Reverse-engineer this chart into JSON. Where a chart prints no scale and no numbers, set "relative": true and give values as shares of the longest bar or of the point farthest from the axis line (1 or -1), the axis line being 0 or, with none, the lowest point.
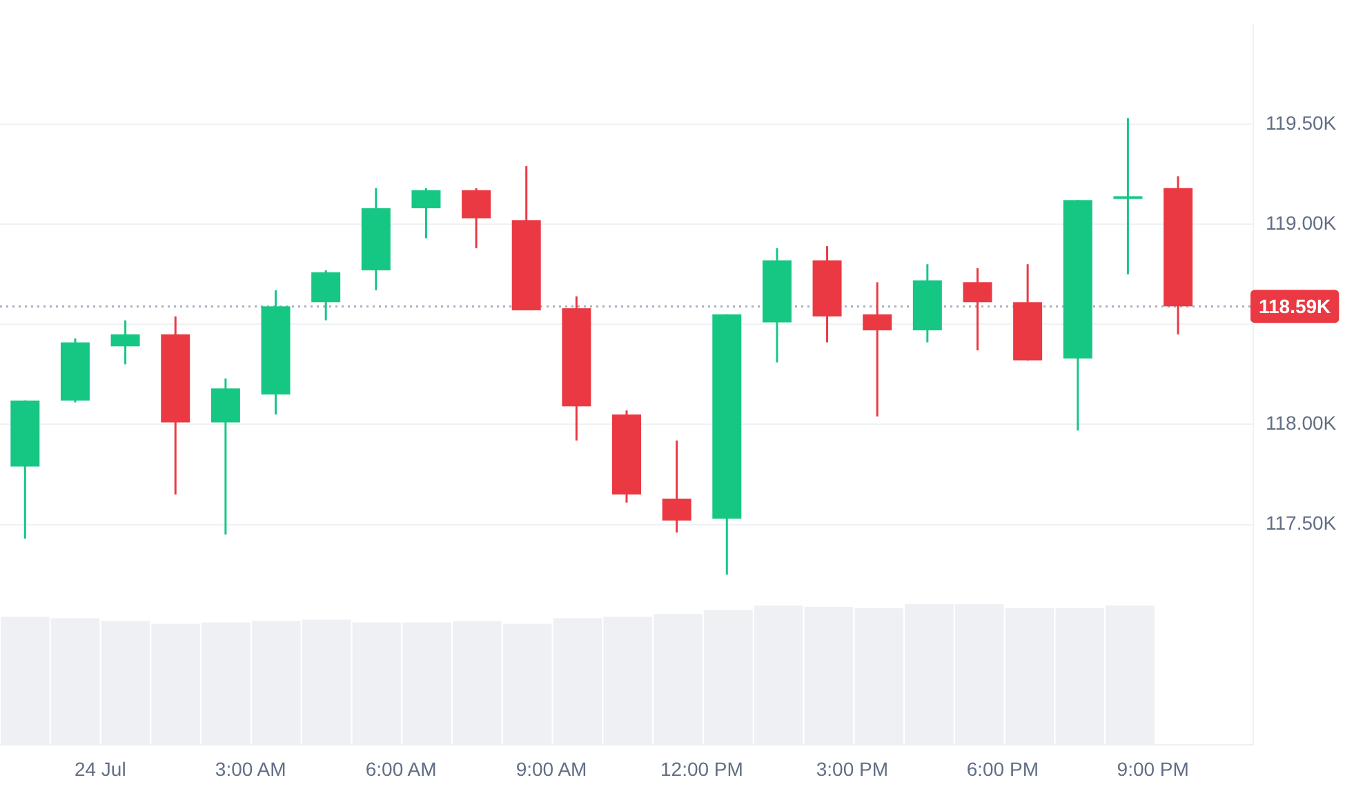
{
  "chart_data": [
    {
      "type": "candlestick",
      "x": [
        -1.5,
        -0.5,
        0.5,
        1.5,
        2.5,
        3.5,
        4.5,
        5.5,
        6.5,
        7.5,
        8.5,
        9.5,
        10.5,
        11.5,
        12.5,
        13.5,
        14.5,
        15.5,
        16.5,
        17.5,
        18.5,
        19.5,
        20.5,
        21.5
      ],
      "ohlc": [
        [
          117790,
          118120,
          117430,
          118120
        ],
        [
          118120,
          118430,
          118110,
          118410
        ],
        [
          118390,
          118520,
          118300,
          118450
        ],
        [
          118450,
          118540,
          117650,
          118010
        ],
        [
          118010,
          118230,
          117450,
          118180
        ],
        [
          118150,
          118670,
          118050,
          118590
        ],
        [
          118610,
          118770,
          118520,
          118760
        ],
        [
          118770,
          119180,
          118670,
          119080
        ],
        [
          119080,
          119180,
          118930,
          119170
        ],
        [
          119170,
          119180,
          118880,
          119030
        ],
        [
          119020,
          119290,
          118570,
          118570
        ],
        [
          118580,
          118640,
          117920,
          118090
        ],
        [
          118050,
          118070,
          117610,
          117650
        ],
        [
          117630,
          117920,
          117460,
          117520
        ],
        [
          117530,
          118550,
          117250,
          118550
        ],
        [
          118510,
          118880,
          118310,
          118820
        ],
        [
          118820,
          118890,
          118410,
          118540
        ],
        [
          118550,
          118710,
          118040,
          118470
        ],
        [
          118470,
          118800,
          118410,
          118720
        ],
        [
          118710,
          118780,
          118370,
          118610
        ],
        [
          118610,
          118800,
          118320,
          118320
        ],
        [
          118330,
          119120,
          117970,
          119120
        ],
        [
          119130,
          119530,
          118750,
          119140
        ],
        [
          119180,
          119240,
          118450,
          118590
        ]
      ],
      "colors": [
        "#16c784",
        "#16c784",
        "#16c784",
        "#ea3943",
        "#16c784",
        "#16c784",
        "#16c784",
        "#16c784",
        "#16c784",
        "#ea3943",
        "#ea3943",
        "#ea3943",
        "#ea3943",
        "#ea3943",
        "#16c784",
        "#16c784",
        "#ea3943",
        "#ea3943",
        "#16c784",
        "#ea3943",
        "#ea3943",
        "#16c784",
        "#16c784",
        "#ea3943"
      ],
      "xlim": [
        -2,
        23
      ],
      "xticks": [
        {
          "value": 0,
          "label": "24 Jul"
        },
        {
          "value": 3,
          "label": "3:00 AM"
        },
        {
          "value": 6,
          "label": "6:00 AM"
        },
        {
          "value": 9,
          "label": "9:00 AM"
        },
        {
          "value": 12,
          "label": "12:00 PM"
        },
        {
          "value": 15,
          "label": "3:00 PM"
        },
        {
          "value": 18,
          "label": "6:00 PM"
        },
        {
          "value": 21,
          "label": "9:00 PM"
        }
      ],
      "ylim": [
        116400,
        120000
      ],
      "yticks": [
        {
          "value": 117500,
          "label": "117.50K"
        },
        {
          "value": 118000,
          "label": "118.00K"
        },
        {
          "value": 118500,
          "label": null
        },
        {
          "value": 119000,
          "label": "119.00K"
        },
        {
          "value": 119500,
          "label": "119.50K"
        }
      ],
      "grid": "y",
      "legend": false,
      "ref_lines": [
        {
          "axis": "y",
          "value": 118590,
          "label": "118.59K",
          "color": "#a6b0c3",
          "line_style": "dotted"
        }
      ]
    },
    {
      "type": "bar",
      "relative": true,
      "categories": [
        null,
        null,
        null,
        null,
        null,
        null,
        null,
        null,
        null,
        null,
        null,
        null,
        null,
        null,
        null,
        null,
        null,
        null,
        null,
        null,
        null,
        null,
        null
      ],
      "values": [
        0.91,
        0.9,
        0.88,
        0.86,
        0.87,
        0.88,
        0.89,
        0.87,
        0.87,
        0.88,
        0.86,
        0.9,
        0.91,
        0.93,
        0.96,
        0.99,
        0.98,
        0.97,
        1,
        1,
        0.97,
        0.97,
        0.99
      ],
      "color": "#eef0f3",
      "legend": false,
      "grid": false
    }
  ]
}
